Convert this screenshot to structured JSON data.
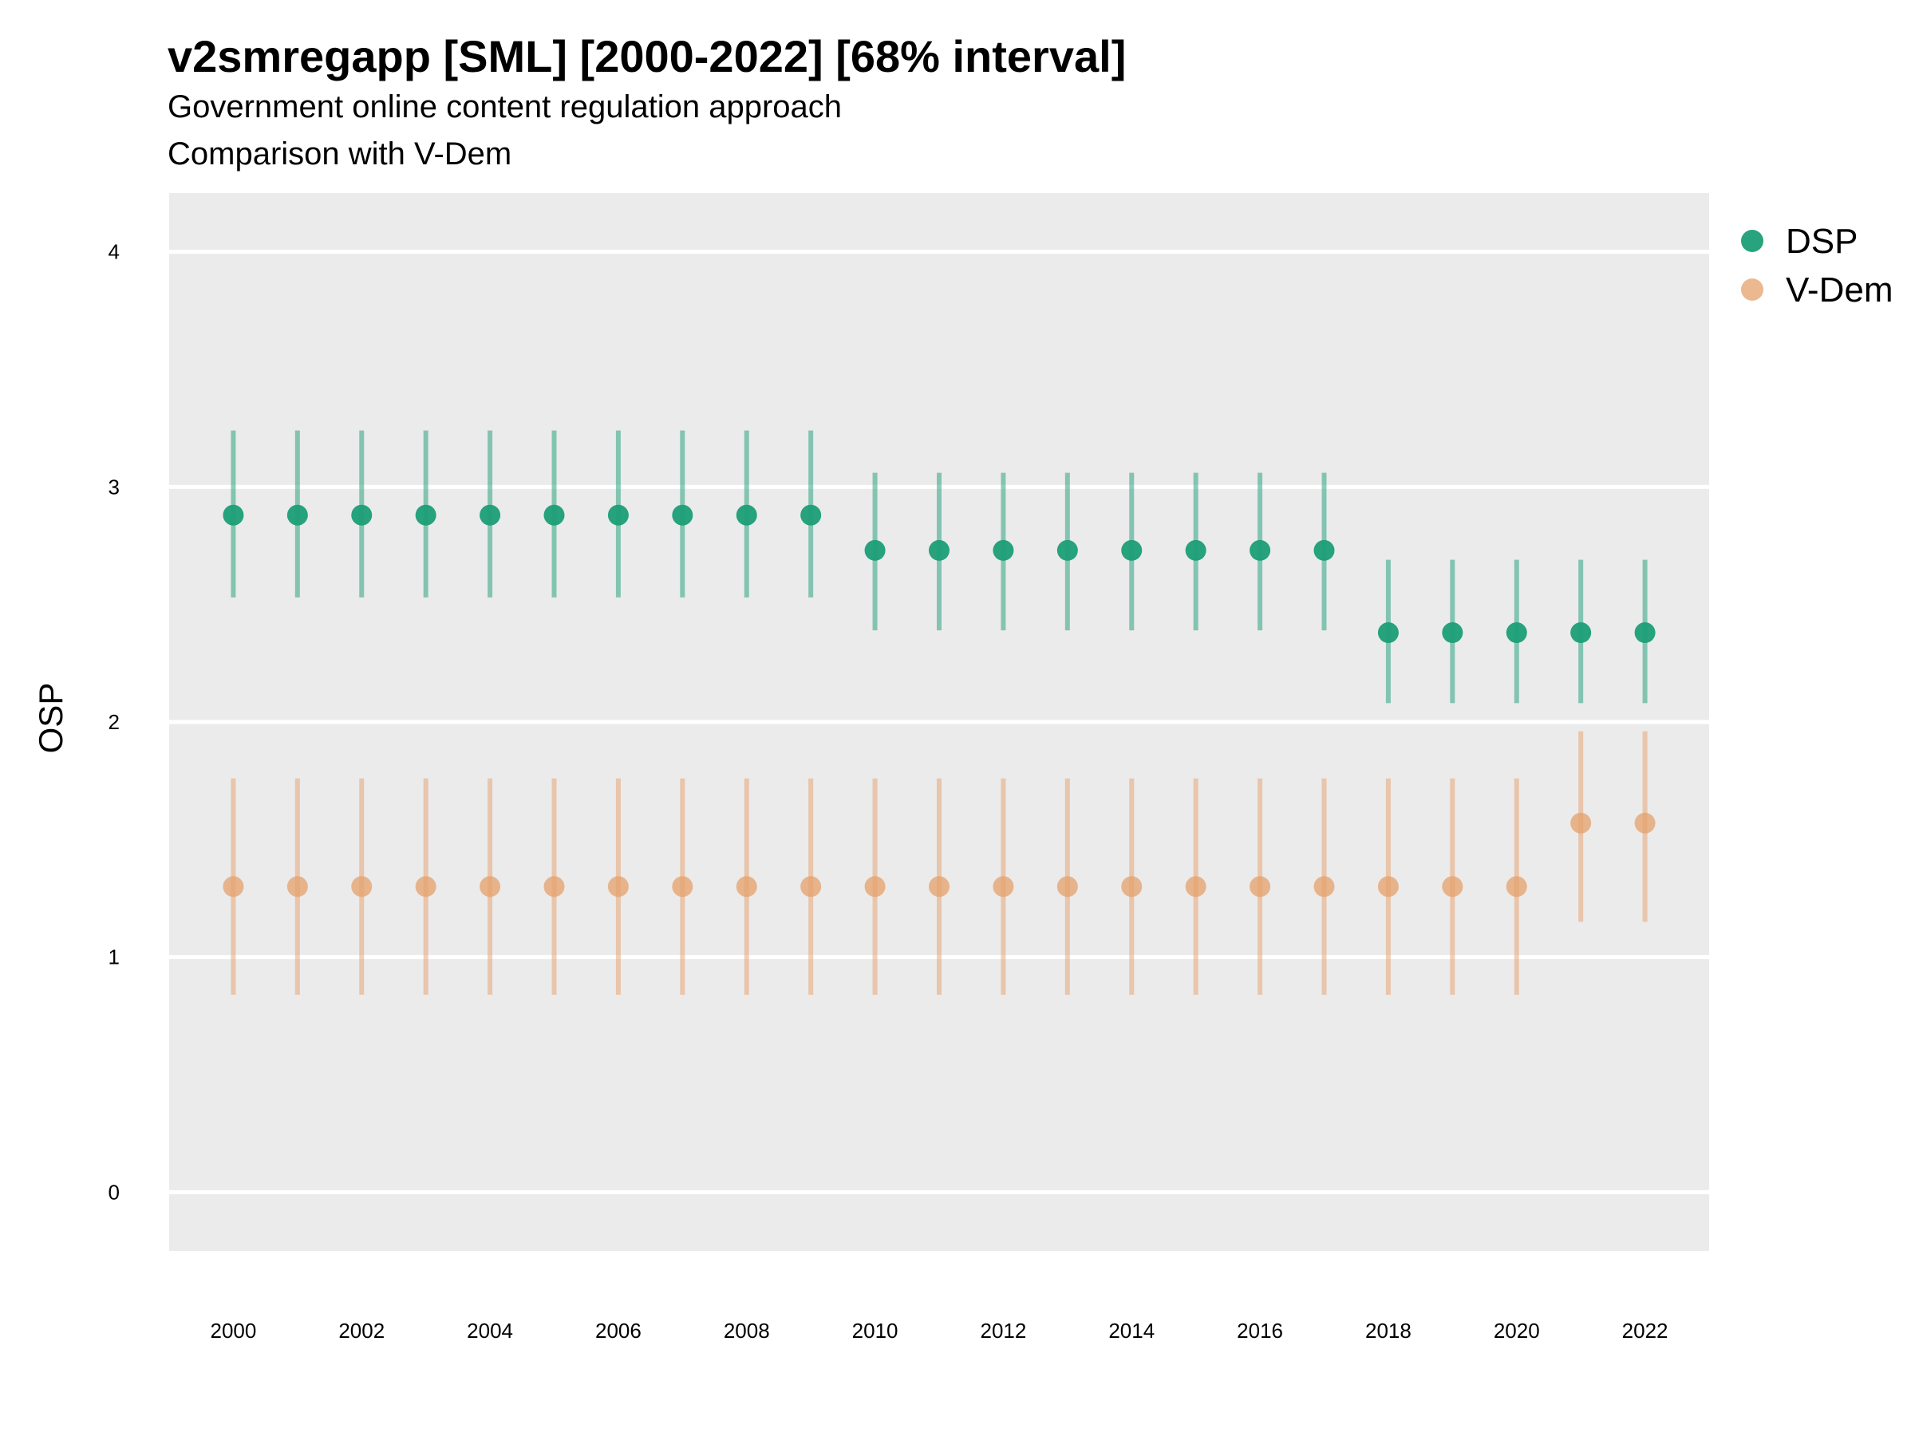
{
  "title": "v2smregapp [SML] [2000-2022] [68% interval]",
  "subtitle": "Government online content regulation approach",
  "caption": "Comparison with V-Dem",
  "chart_data": {
    "type": "scatter",
    "ylabel": "OSP",
    "xlabel": "",
    "ylim": [
      -0.25,
      4.25
    ],
    "y_ticks": [
      0,
      1,
      2,
      3,
      4
    ],
    "x_ticks": [
      2000,
      2002,
      2004,
      2006,
      2008,
      2010,
      2012,
      2014,
      2016,
      2018,
      2020,
      2022
    ],
    "x": [
      2000,
      2001,
      2002,
      2003,
      2004,
      2005,
      2006,
      2007,
      2008,
      2009,
      2010,
      2011,
      2012,
      2013,
      2014,
      2015,
      2016,
      2017,
      2018,
      2019,
      2020,
      2021,
      2022
    ],
    "grid": true,
    "legend_position": "right",
    "series": [
      {
        "name": "DSP",
        "color": "#1b9e77",
        "values": [
          2.88,
          2.88,
          2.88,
          2.88,
          2.88,
          2.88,
          2.88,
          2.88,
          2.88,
          2.88,
          2.73,
          2.73,
          2.73,
          2.73,
          2.73,
          2.73,
          2.73,
          2.73,
          2.38,
          2.38,
          2.38,
          2.38,
          2.38
        ],
        "lower": [
          2.53,
          2.53,
          2.53,
          2.53,
          2.53,
          2.53,
          2.53,
          2.53,
          2.53,
          2.53,
          2.39,
          2.39,
          2.39,
          2.39,
          2.39,
          2.39,
          2.39,
          2.39,
          2.08,
          2.08,
          2.08,
          2.08,
          2.08
        ],
        "upper": [
          3.24,
          3.24,
          3.24,
          3.24,
          3.24,
          3.24,
          3.24,
          3.24,
          3.24,
          3.24,
          3.06,
          3.06,
          3.06,
          3.06,
          3.06,
          3.06,
          3.06,
          3.06,
          2.69,
          2.69,
          2.69,
          2.69,
          2.69
        ]
      },
      {
        "name": "V-Dem",
        "color": "#e6a06b",
        "values": [
          1.3,
          1.3,
          1.3,
          1.3,
          1.3,
          1.3,
          1.3,
          1.3,
          1.3,
          1.3,
          1.3,
          1.3,
          1.3,
          1.3,
          1.3,
          1.3,
          1.3,
          1.3,
          1.3,
          1.3,
          1.3,
          1.57,
          1.57
        ],
        "lower": [
          0.84,
          0.84,
          0.84,
          0.84,
          0.84,
          0.84,
          0.84,
          0.84,
          0.84,
          0.84,
          0.84,
          0.84,
          0.84,
          0.84,
          0.84,
          0.84,
          0.84,
          0.84,
          0.84,
          0.84,
          0.84,
          1.15,
          1.15
        ],
        "upper": [
          1.76,
          1.76,
          1.76,
          1.76,
          1.76,
          1.76,
          1.76,
          1.76,
          1.76,
          1.76,
          1.76,
          1.76,
          1.76,
          1.76,
          1.76,
          1.76,
          1.76,
          1.76,
          1.76,
          1.76,
          1.76,
          1.96,
          1.96
        ]
      }
    ]
  }
}
